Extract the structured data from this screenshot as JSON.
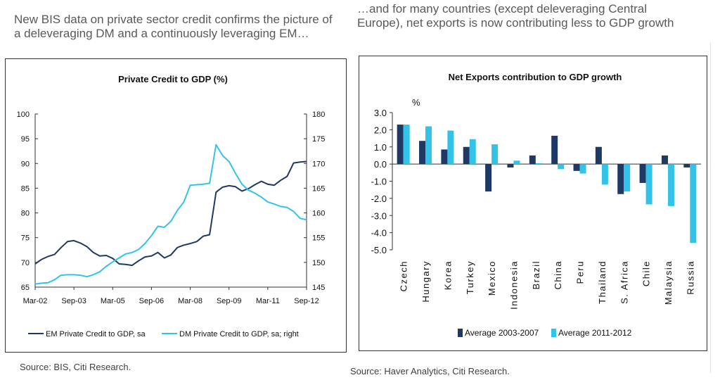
{
  "headlines": {
    "left": "New BIS data on private sector credit confirms the picture of a deleveraging DM and a continuously leveraging EM…",
    "right": "…and for many countries (except deleveraging Central Europe), net exports is now contributing less to GDP growth"
  },
  "sources": {
    "left": "Source: BIS, Citi Research.",
    "right": "Source: Haver Analytics, Citi Research."
  },
  "chart_data": [
    {
      "type": "line",
      "title": "Private Credit to GDP (%)",
      "x_tick_labels": [
        "Mar-02",
        "Sep-03",
        "Mar-05",
        "Sep-06",
        "Mar-08",
        "Sep-09",
        "Mar-11",
        "Sep-12"
      ],
      "x_range": [
        0,
        42
      ],
      "ylim_left": [
        65,
        100
      ],
      "yticks_left": [
        65,
        70,
        75,
        80,
        85,
        90,
        95,
        100
      ],
      "ylim_right": [
        145,
        180
      ],
      "yticks_right": [
        145,
        150,
        155,
        160,
        165,
        170,
        175,
        180
      ],
      "legend_position": "bottom",
      "grid": false,
      "series": [
        {
          "name": "EM Private Credit to GDP, sa",
          "axis": "left",
          "color": "#1f3864",
          "x": [
            0,
            1,
            2,
            3,
            4,
            5,
            6,
            7,
            8,
            9,
            10,
            11,
            12,
            13,
            14,
            15,
            16,
            17,
            18,
            19,
            20,
            21,
            22,
            23,
            24,
            25,
            26,
            27,
            28,
            29,
            30,
            31,
            32,
            33,
            34,
            35,
            36,
            37,
            38,
            39,
            40,
            41,
            42
          ],
          "values": [
            69.7,
            70.6,
            71.2,
            71.6,
            73.0,
            74.2,
            74.4,
            73.9,
            73.2,
            72.0,
            71.3,
            71.4,
            70.8,
            69.7,
            69.6,
            69.4,
            70.3,
            71.1,
            71.3,
            72.0,
            70.9,
            71.5,
            73.0,
            73.5,
            73.8,
            74.2,
            75.3,
            75.6,
            84.2,
            85.2,
            85.5,
            85.3,
            84.4,
            84.9,
            85.7,
            86.4,
            85.8,
            85.6,
            86.6,
            87.4,
            90.1,
            90.3,
            90.4
          ]
        },
        {
          "name": "DM Private Credit to GDP, sa; right",
          "axis": "right",
          "color": "#33c3e8",
          "x": [
            0,
            1,
            2,
            3,
            4,
            5,
            6,
            7,
            8,
            9,
            10,
            11,
            12,
            13,
            14,
            15,
            16,
            17,
            18,
            19,
            20,
            21,
            22,
            23,
            24,
            25,
            26,
            27,
            28,
            29,
            30,
            31,
            32,
            33,
            34,
            35,
            36,
            37,
            38,
            39,
            40,
            41,
            42
          ],
          "values": [
            145.6,
            145.8,
            145.9,
            146.5,
            147.4,
            147.5,
            147.5,
            147.4,
            147.1,
            147.5,
            148.1,
            149.2,
            150.1,
            150.9,
            151.7,
            152.0,
            152.6,
            153.8,
            155.4,
            157.3,
            157.1,
            158.3,
            160.5,
            162.2,
            165.6,
            165.7,
            165.8,
            166.0,
            173.8,
            171.6,
            170.4,
            168.0,
            165.8,
            164.6,
            164.0,
            163.2,
            162.2,
            161.8,
            161.3,
            161.1,
            160.3,
            158.9,
            158.6
          ]
        }
      ]
    },
    {
      "type": "bar",
      "title": "Net Exports contribution to GDP growth",
      "ylabel": "%",
      "ylim": [
        -5.0,
        3.0
      ],
      "yticks": [
        3.0,
        2.0,
        1.0,
        0.0,
        -1.0,
        -2.0,
        -3.0,
        -4.0,
        -5.0
      ],
      "ytick_labels": [
        "3.0",
        "2.0",
        "1.0",
        "0.0",
        "-1.0",
        "-2.0",
        "-3.0",
        "-4.0",
        "-5.0"
      ],
      "legend_position": "bottom",
      "grid": false,
      "categories": [
        "Czech",
        "Hungary",
        "Korea",
        "Turkey",
        "Mexico",
        "Indonesia",
        "Brazil",
        "China",
        "Peru",
        "Thailand",
        "S. Africa",
        "Chile",
        "Malaysia",
        "Russia"
      ],
      "series": [
        {
          "name": "Average 2003-2007",
          "color": "#1f3864",
          "values": [
            2.3,
            1.35,
            0.85,
            1.0,
            -1.6,
            -0.2,
            0.5,
            1.65,
            -0.4,
            1.0,
            -1.75,
            -1.1,
            0.5,
            -0.2
          ]
        },
        {
          "name": "Average 2011-2012",
          "color": "#33c3e8",
          "values": [
            2.3,
            2.2,
            1.95,
            1.45,
            1.15,
            0.2,
            0.05,
            -0.3,
            -0.55,
            -1.2,
            -1.6,
            -2.35,
            -2.45,
            -4.6
          ]
        }
      ]
    }
  ]
}
